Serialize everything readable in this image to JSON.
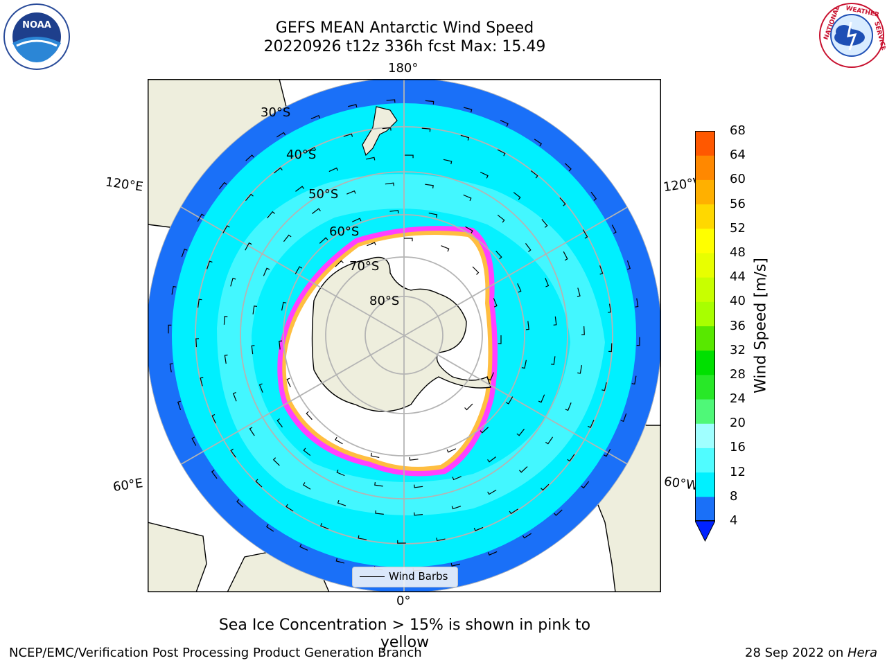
{
  "title": {
    "line1": "GEFS MEAN Antarctic Wind Speed",
    "line2": "20220926 t12z 336h fcst   Max: 15.49"
  },
  "logos": {
    "left": {
      "icon": "noaa-logo-icon",
      "text": "NOAA"
    },
    "right": {
      "icon": "national-weather-service-logo-icon",
      "text": "NATIONAL WEATHER SERVICE"
    }
  },
  "map": {
    "projection": "south-polar-stereographic",
    "longitude_labels": {
      "top": "180°",
      "bottom": "0°",
      "upper_left": "120°E",
      "upper_right": "120°W",
      "lower_left": "60°E",
      "lower_right": "60°W"
    },
    "latitude_labels": [
      "30°S",
      "40°S",
      "50°S",
      "60°S",
      "70°S",
      "80°S"
    ],
    "legend": {
      "label": "Wind Barbs"
    },
    "colors": {
      "land": "#eeeedd",
      "deep_blue": "#1a70f8",
      "cyan": "#00f0ff",
      "light_cyan": "#4ff8ff",
      "ice_pink": "#ff40ff",
      "ice_orange": "#ffbe40",
      "grid": "#b4b4b4"
    }
  },
  "colorbar": {
    "label": "Wind Speed [m/s]",
    "ticks": [
      "68",
      "64",
      "60",
      "56",
      "52",
      "48",
      "44",
      "40",
      "36",
      "32",
      "28",
      "24",
      "20",
      "16",
      "12",
      "8",
      "4"
    ],
    "extend_min_color": "#0022ff",
    "colors": [
      "#1a70f8",
      "#00f0ff",
      "#50fcff",
      "#a0ffff",
      "#4ff878",
      "#28e828",
      "#00e000",
      "#58e800",
      "#a8ff00",
      "#c8ff00",
      "#e8ff00",
      "#ffff00",
      "#ffd800",
      "#ffb000",
      "#ff8800",
      "#ff5800",
      "#ff2800",
      "#ff0000"
    ]
  },
  "footnote": "Sea Ice Concentration > 15% is shown in pink to yellow",
  "credits": {
    "left": "NCEP/EMC/Verification Post Processing Product Generation Branch",
    "right_date": "28 Sep 2022 on ",
    "right_machine": "Hera"
  }
}
